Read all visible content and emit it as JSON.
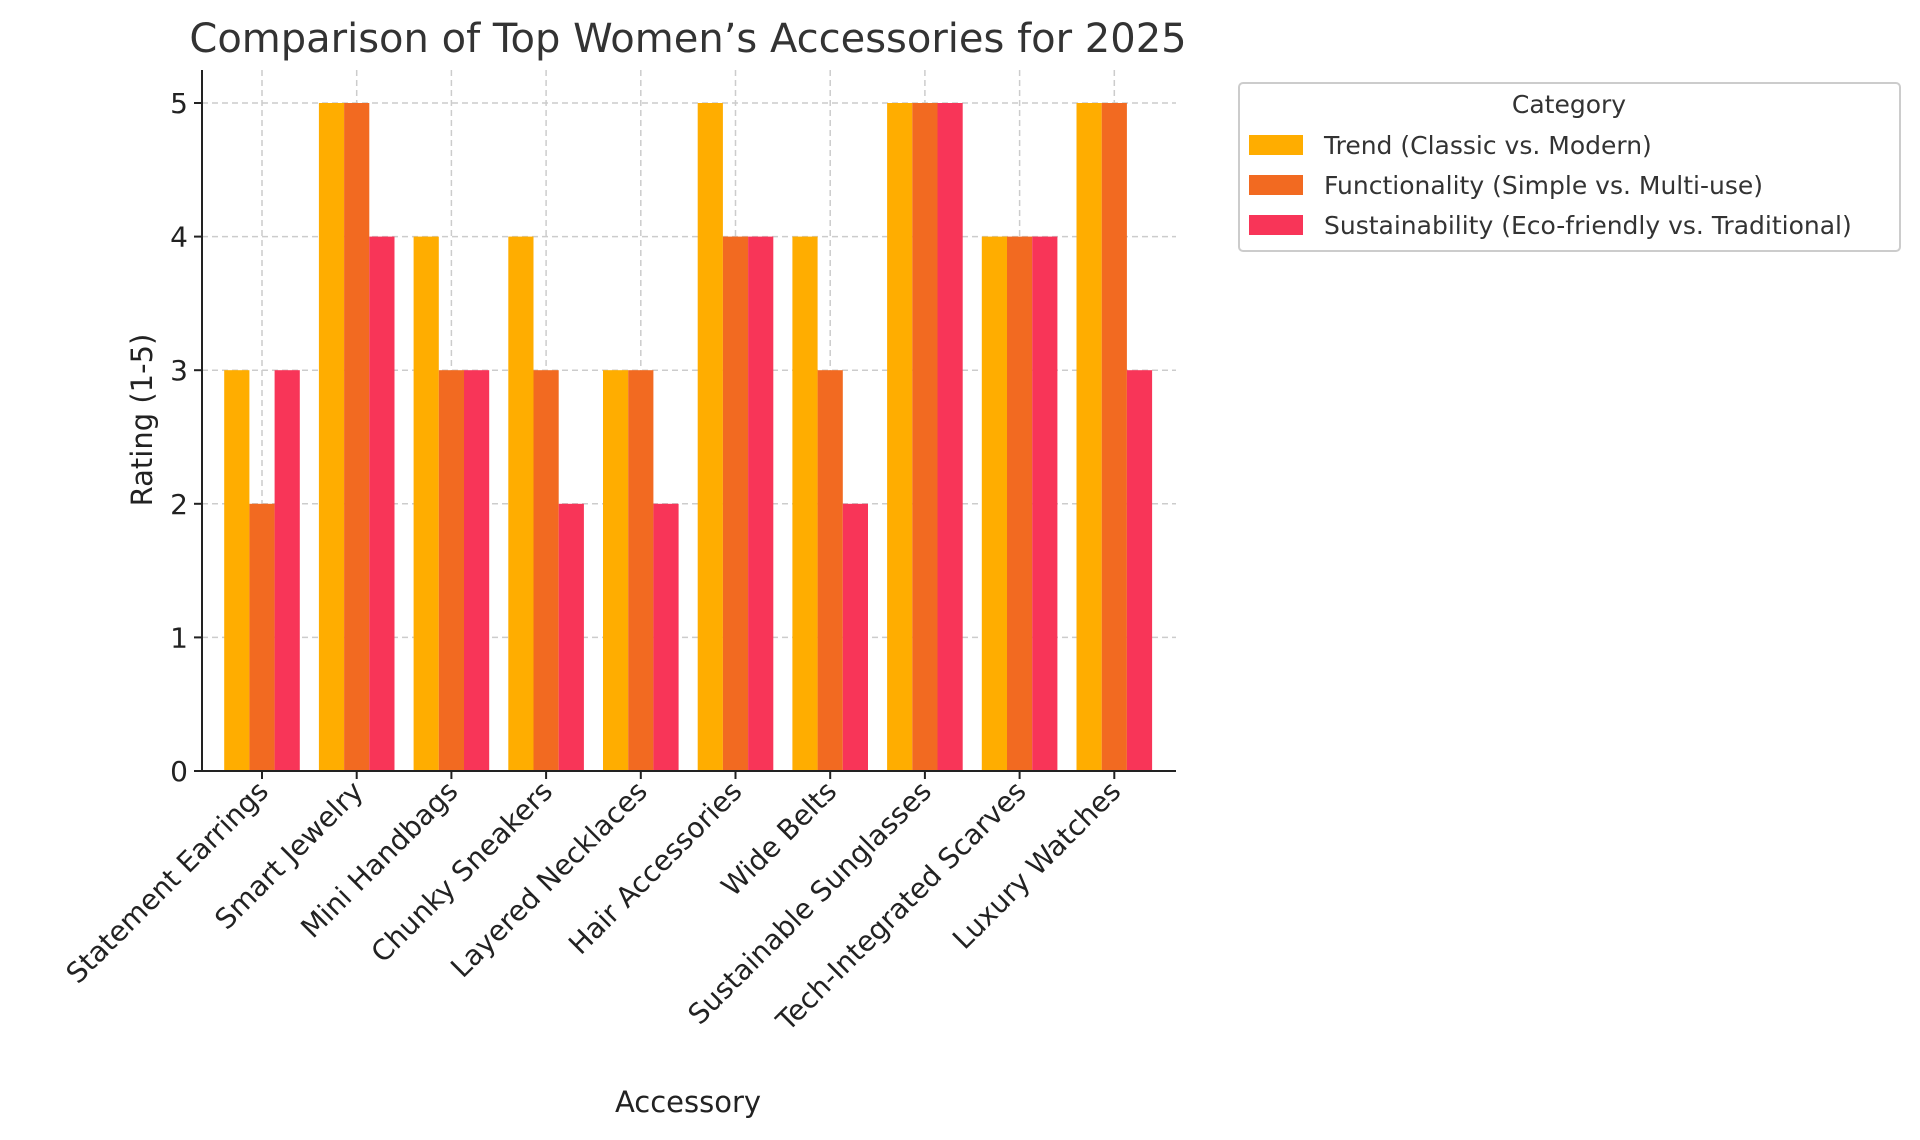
{
  "chart_data": {
    "type": "bar",
    "title": "Comparison of Top Women’s Accessories for 2025",
    "xlabel": "Accessory",
    "ylabel": "Rating (1-5)",
    "ylim": [
      0,
      5.25
    ],
    "yticks": [
      "0",
      "1",
      "2",
      "3",
      "4",
      "5"
    ],
    "grid": true,
    "legend": {
      "title": "Category",
      "placement": "outside-top-right"
    },
    "categories": [
      "Statement Earrings",
      "Smart Jewelry",
      "Mini Handbags",
      "Chunky Sneakers",
      "Layered Necklaces",
      "Hair Accessories",
      "Wide Belts",
      "Sustainable Sunglasses",
      "Tech-Integrated Scarves",
      "Luxury Watches"
    ],
    "series": [
      {
        "name": "Trend (Classic vs. Modern)",
        "color": "#FFAD00",
        "values": [
          3,
          5,
          4,
          4,
          3,
          5,
          4,
          5,
          4,
          5
        ]
      },
      {
        "name": "Functionality (Simple vs. Multi-use)",
        "color": "#F26A21",
        "values": [
          2,
          5,
          3,
          3,
          3,
          4,
          3,
          5,
          4,
          5
        ]
      },
      {
        "name": "Sustainability (Eco-friendly vs. Traditional)",
        "color": "#F83558",
        "values": [
          3,
          4,
          3,
          2,
          2,
          4,
          2,
          5,
          4,
          3
        ]
      }
    ]
  }
}
